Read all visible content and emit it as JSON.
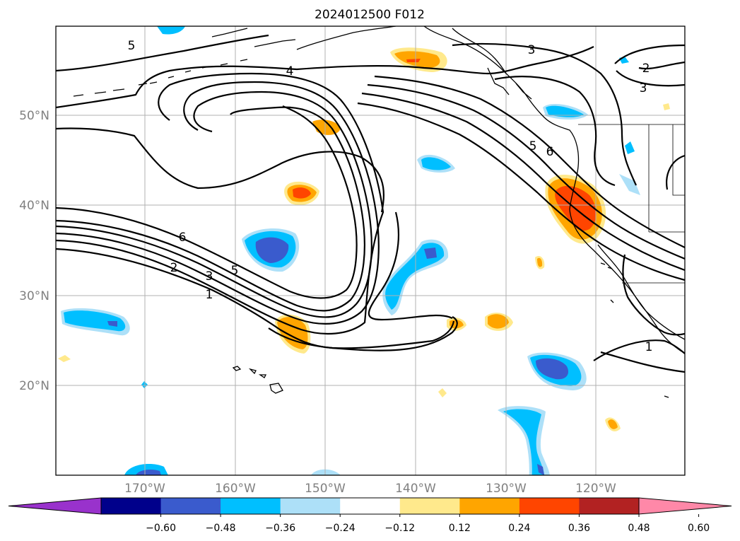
{
  "title": "2024012500 F012",
  "map": {
    "lat_ticks": [
      "20°N",
      "30°N",
      "40°N",
      "50°N"
    ],
    "lon_ticks": [
      "170°W",
      "160°W",
      "150°W",
      "140°W",
      "130°W",
      "120°W"
    ],
    "grid": true
  },
  "contour_labels": [
    "5",
    "4",
    "3",
    "2",
    "3",
    "5",
    "6",
    "6",
    "2",
    "3",
    "5",
    "1",
    "1"
  ],
  "colorbar": {
    "ticks": [
      "−0.60",
      "−0.48",
      "−0.36",
      "−0.24",
      "−0.12",
      "0.12",
      "0.24",
      "0.36",
      "0.48",
      "0.60"
    ],
    "colors": [
      "#9932CC",
      "#00008B",
      "#3A5BCD",
      "#00BFFF",
      "#ADE0F8",
      "#FFFFFF",
      "#FFE98C",
      "#FFA500",
      "#FF4500",
      "#B22222",
      "#FF88A8"
    ],
    "extend": "both"
  }
}
